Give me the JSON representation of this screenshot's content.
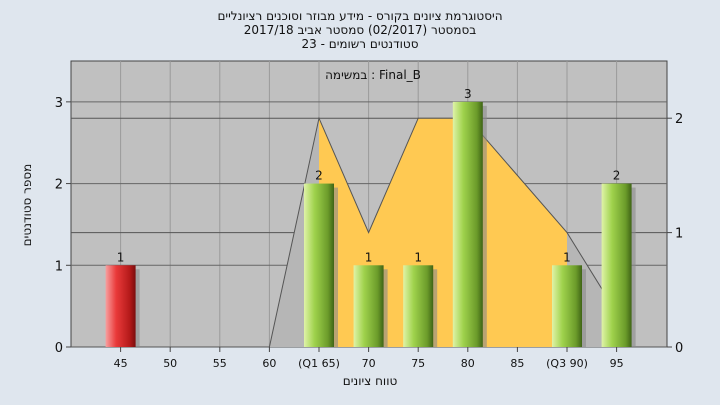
{
  "header": {
    "title_line1": "היסטוגרמת ציונים בקורס - מידע מבוזר וסוכנים רציונליים",
    "title_line2": "בסמסטר  (02/2017)  סמסטר אביב 2017/18",
    "title_line3": "סטודנטים רשומים - 23"
  },
  "chart_data": {
    "type": "bar",
    "title": "במשימה : Final_B",
    "xlabel": "טווח ציונים",
    "ylabel": "מספר סטודנטים",
    "categories": [
      "45",
      "50",
      "55",
      "60",
      "(Q1 65)",
      "70",
      "75",
      "80",
      "85",
      "(Q3 90)",
      "95"
    ],
    "values": [
      1,
      0,
      0,
      0,
      2,
      1,
      1,
      3,
      0,
      1,
      2
    ],
    "bar_colors": [
      "red",
      "green",
      "green",
      "green",
      "green",
      "green",
      "green",
      "green",
      "green",
      "green",
      "green"
    ],
    "ylim": [
      0,
      3.5
    ],
    "yticks": [
      0,
      1,
      2,
      3
    ],
    "y2lim": [
      0,
      2.5
    ],
    "y2ticks": [
      0,
      1,
      2
    ],
    "area_series": {
      "x": [
        "60",
        "(Q1 65)",
        "70",
        "75",
        "80",
        "(Q3 90)",
        "95"
      ],
      "values": [
        0,
        2,
        1,
        2,
        2,
        1,
        0.3
      ]
    },
    "grid": true,
    "colors": {
      "plot_bg": "#c0c0c0",
      "area_fill": "#ffc952",
      "area_gray": "#b6b6b6",
      "red_bar": "#e33b3b",
      "green_bar": "#8cc43e"
    }
  }
}
